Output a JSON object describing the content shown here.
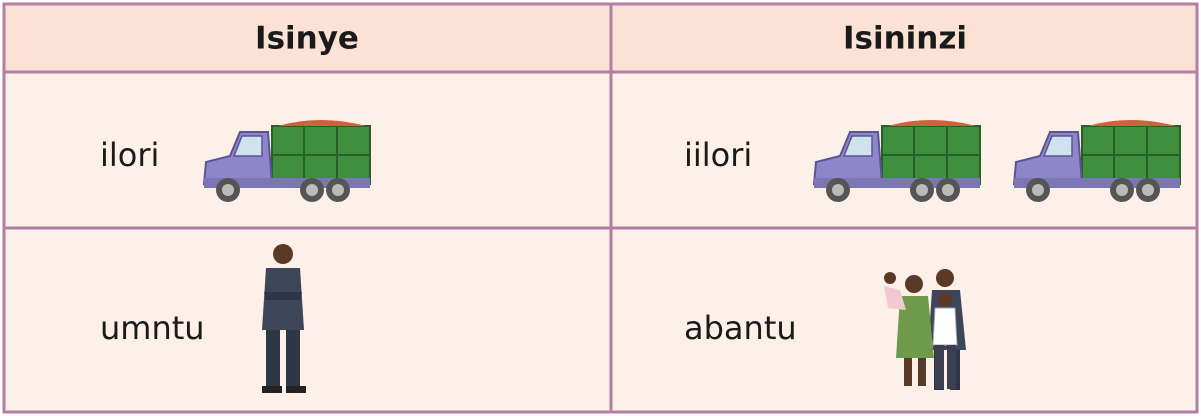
{
  "table": {
    "header": [
      "Isinye",
      "Isininzi"
    ],
    "rows": [
      [
        "ilori",
        "iilori"
      ],
      [
        "umntu",
        "abantu"
      ]
    ]
  }
}
